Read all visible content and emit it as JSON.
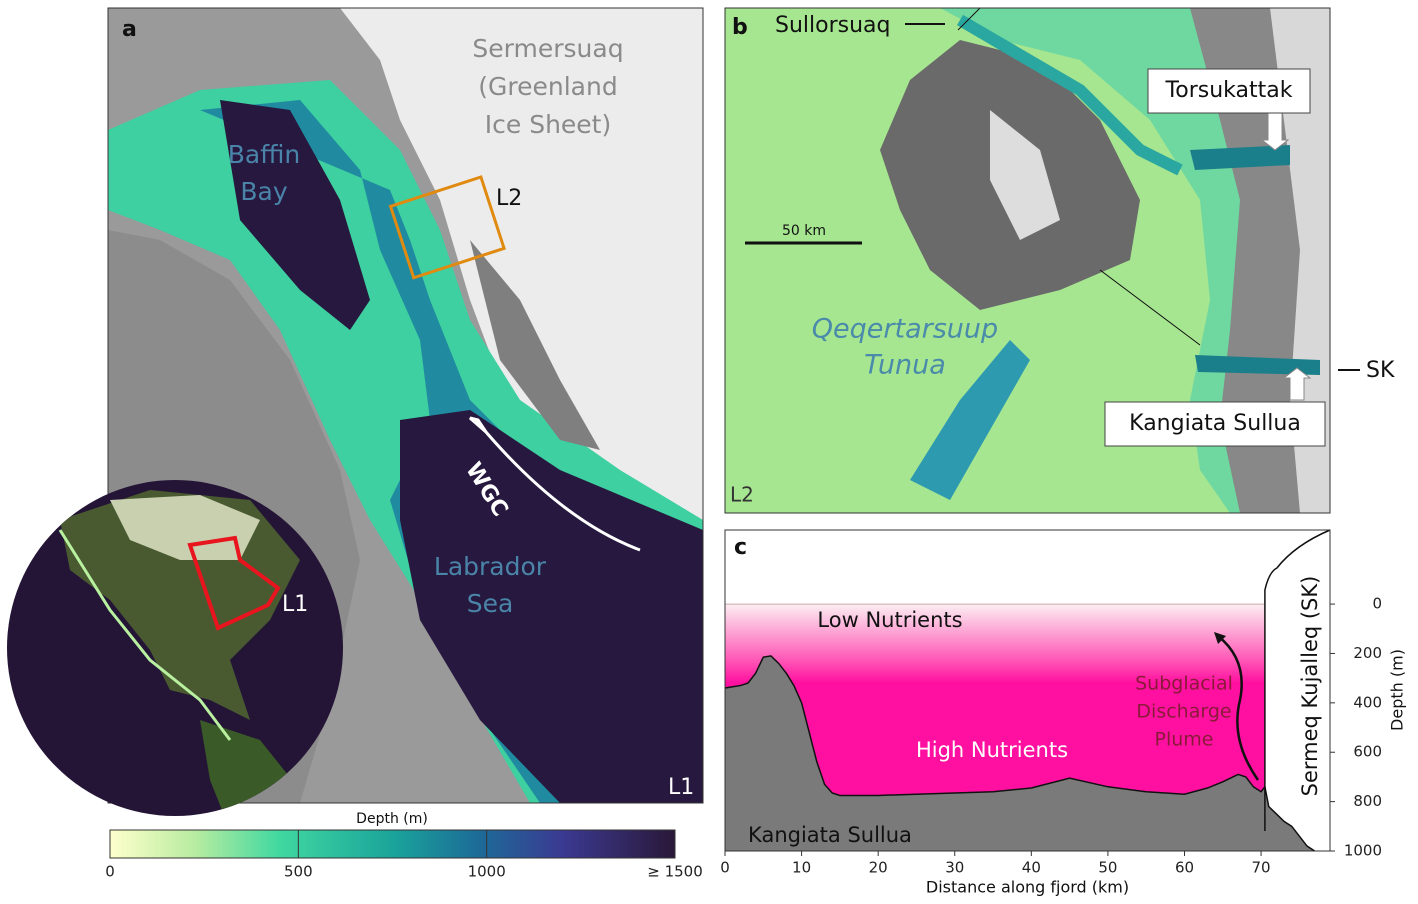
{
  "panel_a": {
    "label": "a",
    "ice_sheet": [
      "Sermersuaq",
      "(Greenland",
      "Ice Sheet)"
    ],
    "bay": [
      "Baffin",
      "Bay"
    ],
    "box": "L2",
    "current": "WGC",
    "sea": [
      "Labrador",
      "Sea"
    ],
    "corner": "L1",
    "globe_box": "L1"
  },
  "panel_b": {
    "label": "b",
    "north": "Sullorsuaq",
    "fjord_1": "Torsukattak",
    "scale_bar": "50 km",
    "strait": [
      "Qeqertarsuup",
      "Tunua"
    ],
    "glacier": "SK",
    "fjord_2": "Kangiata Sullua",
    "corner": "L2"
  },
  "colorbar": {
    "title": "Depth (m)",
    "lim": [
      0,
      1500
    ],
    "ticks": [
      0,
      500,
      1000,
      {
        "value": 1500,
        "label": "≥ 1500"
      }
    ]
  },
  "chart_data": {
    "type": "area",
    "panel_label": "c",
    "x_label": "Distance along fjord (km)",
    "y_label": "Depth (m)",
    "xlim": [
      0,
      79
    ],
    "xticks": [
      0,
      10,
      20,
      30,
      40,
      50,
      60,
      70
    ],
    "ylim": [
      1000,
      -300
    ],
    "yticks": [
      0,
      200,
      400,
      600,
      800,
      1000
    ],
    "x": [
      0,
      1,
      2,
      3,
      4,
      5,
      6,
      7,
      8,
      9,
      10,
      11,
      12,
      13,
      14,
      15,
      20,
      25,
      30,
      35,
      40,
      45,
      50,
      55,
      60,
      63,
      65,
      67,
      68,
      69,
      70,
      70.5,
      71,
      72,
      73,
      74,
      75,
      76,
      77
    ],
    "values": [
      340,
      335,
      330,
      320,
      280,
      215,
      210,
      240,
      280,
      330,
      400,
      520,
      640,
      730,
      765,
      775,
      775,
      770,
      765,
      760,
      745,
      705,
      740,
      760,
      770,
      745,
      720,
      690,
      700,
      740,
      760,
      740,
      820,
      850,
      880,
      900,
      940,
      980,
      1000
    ],
    "color": "#7a7a7a",
    "annotations": {
      "low": "Low Nutrients",
      "high": "High Nutrients",
      "plume": [
        "Subglacial",
        "Discharge",
        "Plume"
      ],
      "glacier": "Sermeq Kujalleq (SK)",
      "fjord": "Kangiata Sullua"
    }
  }
}
